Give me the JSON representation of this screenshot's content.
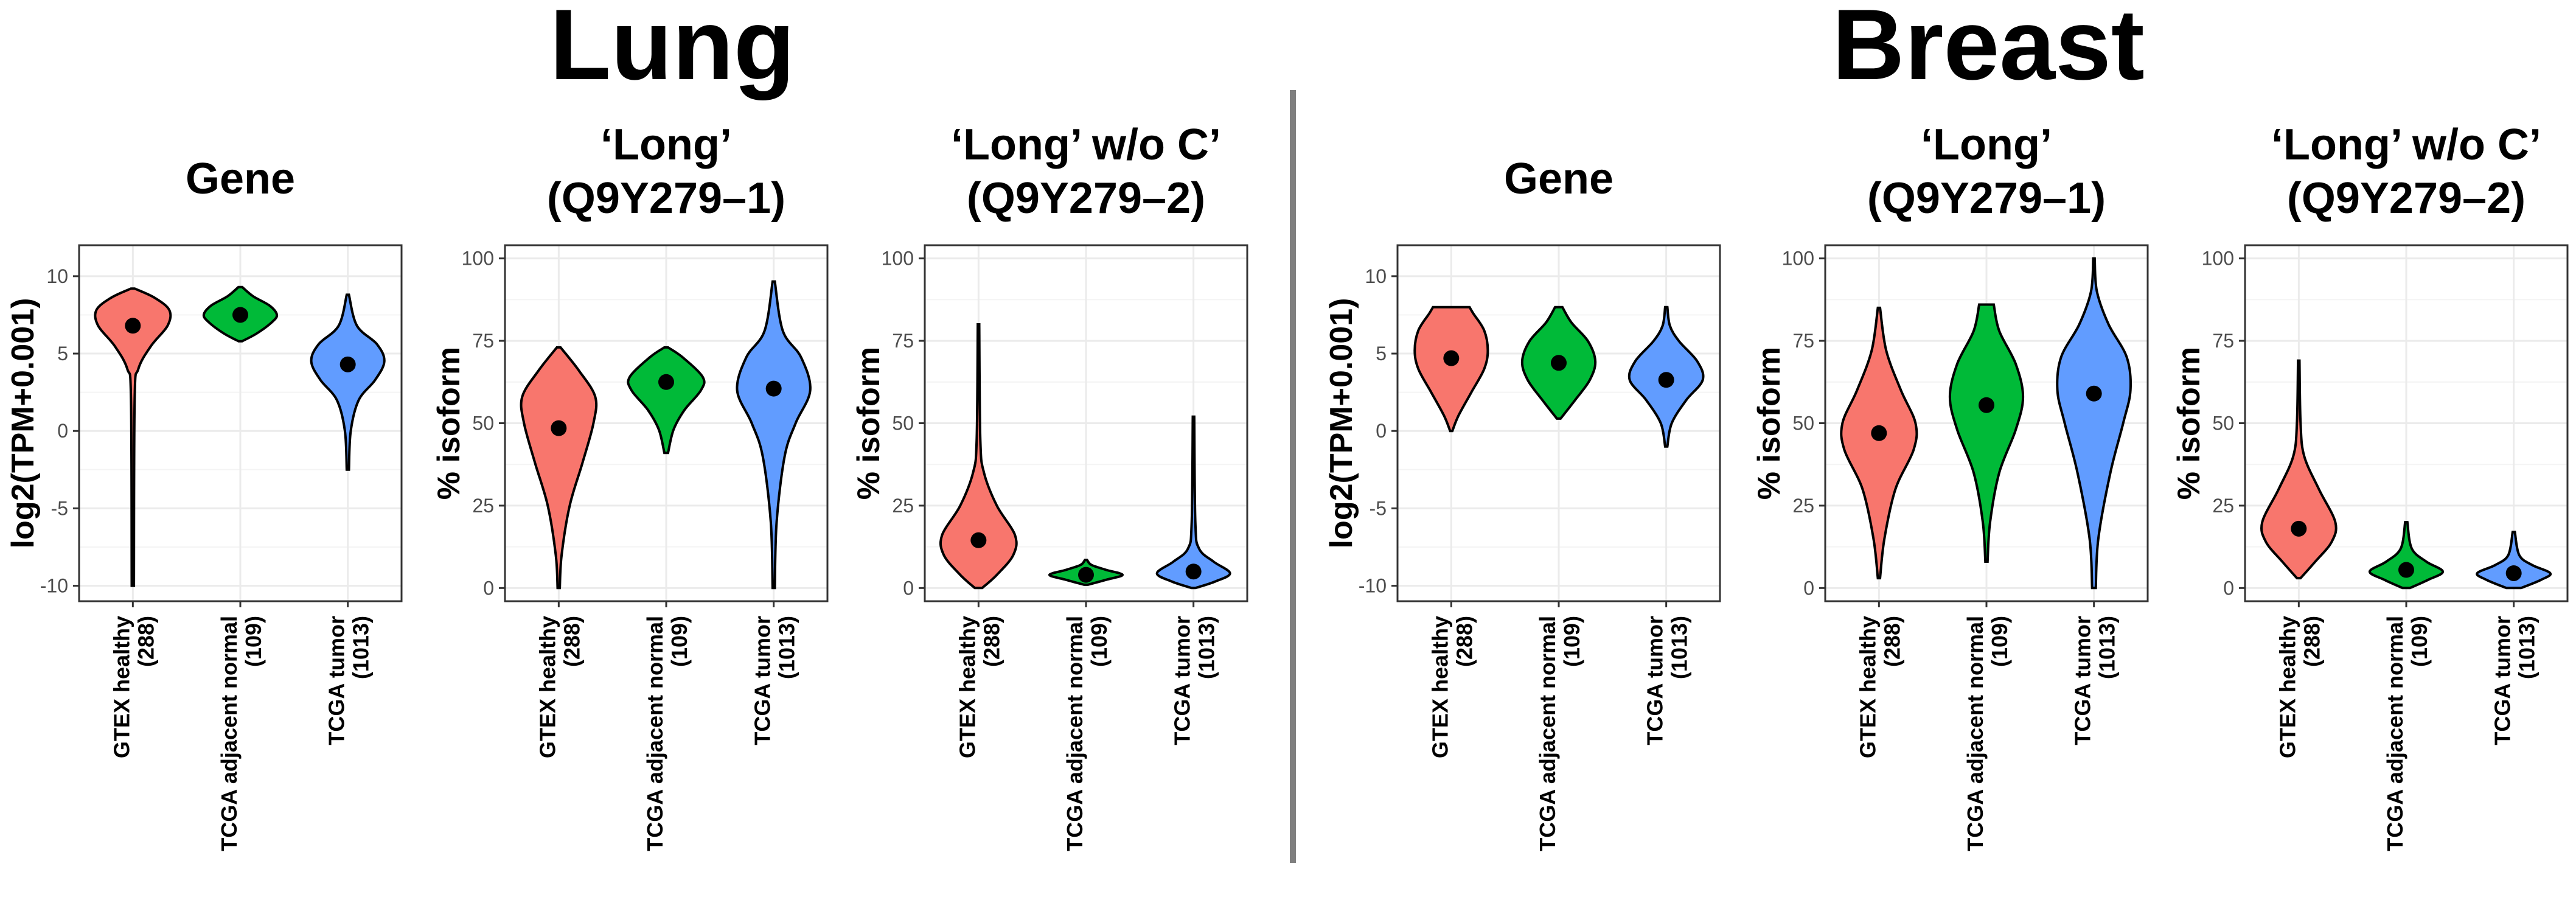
{
  "sections": [
    {
      "title": "Lung",
      "chart_indices": [
        0,
        1,
        2
      ]
    },
    {
      "title": "Breast",
      "chart_indices": [
        3,
        4,
        5
      ]
    }
  ],
  "chart_data": [
    {
      "type": "violin",
      "title": [
        "Gene"
      ],
      "ylabel": "log2(TPM+0.001)",
      "ylim": [
        -11,
        12
      ],
      "yticks": [
        -10,
        -5,
        0,
        5,
        10
      ],
      "categories": [
        [
          "GTEX healthy",
          "(288)"
        ],
        [
          "TCGA adjacent normal",
          "(109)"
        ],
        [
          "TCGA tumor",
          "(1013)"
        ]
      ],
      "colors": [
        "#F8766D",
        "#00BA38",
        "#619CFF"
      ],
      "series": [
        {
          "min": -10,
          "max": 9.2,
          "mean": 6.8,
          "profile": [
            [
              -10,
              0.03
            ],
            [
              2,
              0.05
            ],
            [
              4,
              0.15
            ],
            [
              5.5,
              0.5
            ],
            [
              6.8,
              0.95
            ],
            [
              7.8,
              1.0
            ],
            [
              8.6,
              0.6
            ],
            [
              9.2,
              0.05
            ]
          ]
        },
        {
          "min": 5.8,
          "max": 9.3,
          "mean": 7.5,
          "profile": [
            [
              5.8,
              0.05
            ],
            [
              6.3,
              0.45
            ],
            [
              7,
              0.85
            ],
            [
              7.5,
              1.0
            ],
            [
              8.1,
              0.8
            ],
            [
              8.7,
              0.35
            ],
            [
              9.3,
              0.05
            ]
          ]
        },
        {
          "min": -2.5,
          "max": 8.8,
          "mean": 4.3,
          "profile": [
            [
              -2.5,
              0.03
            ],
            [
              0,
              0.08
            ],
            [
              2,
              0.3
            ],
            [
              3.3,
              0.75
            ],
            [
              4.5,
              1.0
            ],
            [
              5.6,
              0.8
            ],
            [
              6.8,
              0.25
            ],
            [
              8.8,
              0.03
            ]
          ]
        }
      ]
    },
    {
      "type": "violin",
      "title": [
        "‘Long’",
        "(Q9Y279–1)"
      ],
      "ylabel": "% isoform",
      "ylim": [
        -4,
        104
      ],
      "yticks": [
        0,
        25,
        50,
        75,
        100
      ],
      "categories": [
        [
          "GTEX healthy",
          "(288)"
        ],
        [
          "TCGA adjacent normal",
          "(109)"
        ],
        [
          "TCGA tumor",
          "(1013)"
        ]
      ],
      "colors": [
        "#F8766D",
        "#00BA38",
        "#619CFF"
      ],
      "series": [
        {
          "min": 0,
          "max": 73,
          "mean": 48.5,
          "profile": [
            [
              0,
              0.03
            ],
            [
              10,
              0.08
            ],
            [
              25,
              0.3
            ],
            [
              38,
              0.65
            ],
            [
              50,
              0.95
            ],
            [
              58,
              1.0
            ],
            [
              66,
              0.55
            ],
            [
              73,
              0.05
            ]
          ]
        },
        {
          "min": 41,
          "max": 73,
          "mean": 62.5,
          "profile": [
            [
              41,
              0.05
            ],
            [
              48,
              0.2
            ],
            [
              54,
              0.5
            ],
            [
              60,
              0.95
            ],
            [
              64,
              1.0
            ],
            [
              70,
              0.45
            ],
            [
              73,
              0.05
            ]
          ]
        },
        {
          "min": 0,
          "max": 93,
          "mean": 60.5,
          "profile": [
            [
              0,
              0.03
            ],
            [
              20,
              0.08
            ],
            [
              40,
              0.3
            ],
            [
              50,
              0.6
            ],
            [
              60,
              1.0
            ],
            [
              70,
              0.75
            ],
            [
              78,
              0.25
            ],
            [
              93,
              0.03
            ]
          ]
        }
      ]
    },
    {
      "type": "violin",
      "title": [
        "‘Long’ w/o C’",
        "(Q9Y279–2)"
      ],
      "ylabel": "% isoform",
      "ylim": [
        -4,
        104
      ],
      "yticks": [
        0,
        25,
        50,
        75,
        100
      ],
      "categories": [
        [
          "GTEX healthy",
          "(288)"
        ],
        [
          "TCGA adjacent normal",
          "(109)"
        ],
        [
          "TCGA tumor",
          "(1013)"
        ]
      ],
      "colors": [
        "#F8766D",
        "#00BA38",
        "#619CFF"
      ],
      "series": [
        {
          "min": 0,
          "max": 80,
          "mean": 14.5,
          "profile": [
            [
              0,
              0.1
            ],
            [
              4,
              0.5
            ],
            [
              10,
              0.95
            ],
            [
              16,
              1.0
            ],
            [
              25,
              0.5
            ],
            [
              35,
              0.15
            ],
            [
              45,
              0.05
            ],
            [
              80,
              0.02
            ]
          ]
        },
        {
          "min": 1,
          "max": 8.5,
          "mean": 4,
          "profile": [
            [
              1,
              0.05
            ],
            [
              2.5,
              0.55
            ],
            [
              4,
              1.0
            ],
            [
              5.5,
              0.55
            ],
            [
              7,
              0.15
            ],
            [
              8.5,
              0.03
            ]
          ]
        },
        {
          "min": 0,
          "max": 52,
          "mean": 5,
          "profile": [
            [
              0,
              0.05
            ],
            [
              2,
              0.6
            ],
            [
              4.5,
              1.0
            ],
            [
              8,
              0.55
            ],
            [
              12,
              0.15
            ],
            [
              20,
              0.05
            ],
            [
              52,
              0.02
            ]
          ]
        }
      ]
    },
    {
      "type": "violin",
      "title": [
        "Gene"
      ],
      "ylabel": "log2(TPM+0.001)",
      "ylim": [
        -11,
        12
      ],
      "yticks": [
        -10,
        -5,
        0,
        5,
        10
      ],
      "categories": [
        [
          "GTEX healthy",
          "(288)"
        ],
        [
          "TCGA adjacent normal",
          "(109)"
        ],
        [
          "TCGA tumor",
          "(1013)"
        ]
      ],
      "colors": [
        "#F8766D",
        "#00BA38",
        "#619CFF"
      ],
      "series": [
        {
          "min": 0,
          "max": 8,
          "mean": 4.7,
          "profile": [
            [
              0,
              0.03
            ],
            [
              1,
              0.2
            ],
            [
              2.5,
              0.55
            ],
            [
              4,
              0.9
            ],
            [
              5.2,
              1.0
            ],
            [
              6.5,
              0.9
            ],
            [
              7.6,
              0.6
            ],
            [
              8,
              0.5
            ]
          ]
        },
        {
          "min": 0.8,
          "max": 8,
          "mean": 4.4,
          "profile": [
            [
              0.8,
              0.05
            ],
            [
              2,
              0.45
            ],
            [
              3.3,
              0.85
            ],
            [
              4.5,
              1.0
            ],
            [
              5.8,
              0.8
            ],
            [
              7,
              0.35
            ],
            [
              8,
              0.1
            ]
          ]
        },
        {
          "min": -1,
          "max": 8,
          "mean": 3.3,
          "profile": [
            [
              -1,
              0.03
            ],
            [
              0.5,
              0.15
            ],
            [
              2,
              0.55
            ],
            [
              3.3,
              1.0
            ],
            [
              4.5,
              0.85
            ],
            [
              5.8,
              0.35
            ],
            [
              6.8,
              0.1
            ],
            [
              8,
              0.03
            ]
          ]
        }
      ]
    },
    {
      "type": "violin",
      "title": [
        "‘Long’",
        "(Q9Y279–1)"
      ],
      "ylabel": "% isoform",
      "ylim": [
        -4,
        104
      ],
      "yticks": [
        0,
        25,
        50,
        75,
        100
      ],
      "categories": [
        [
          "GTEX healthy",
          "(288)"
        ],
        [
          "TCGA adjacent normal",
          "(109)"
        ],
        [
          "TCGA tumor",
          "(1013)"
        ]
      ],
      "colors": [
        "#F8766D",
        "#00BA38",
        "#619CFF"
      ],
      "series": [
        {
          "min": 3,
          "max": 85,
          "mean": 47,
          "profile": [
            [
              3,
              0.03
            ],
            [
              15,
              0.15
            ],
            [
              30,
              0.45
            ],
            [
              42,
              0.95
            ],
            [
              50,
              1.0
            ],
            [
              60,
              0.6
            ],
            [
              72,
              0.2
            ],
            [
              85,
              0.03
            ]
          ]
        },
        {
          "min": 8,
          "max": 87,
          "mean": 55.5,
          "profile": [
            [
              8,
              0.03
            ],
            [
              20,
              0.1
            ],
            [
              35,
              0.35
            ],
            [
              48,
              0.8
            ],
            [
              58,
              1.0
            ],
            [
              68,
              0.8
            ],
            [
              78,
              0.35
            ],
            [
              86,
              0.2
            ]
          ]
        },
        {
          "min": 0,
          "max": 100,
          "mean": 59,
          "profile": [
            [
              0,
              0.05
            ],
            [
              15,
              0.12
            ],
            [
              35,
              0.45
            ],
            [
              50,
              0.8
            ],
            [
              60,
              1.0
            ],
            [
              70,
              0.9
            ],
            [
              80,
              0.4
            ],
            [
              90,
              0.08
            ],
            [
              100,
              0.02
            ]
          ]
        }
      ]
    },
    {
      "type": "violin",
      "title": [
        "‘Long’ w/o C’",
        "(Q9Y279–2)"
      ],
      "ylabel": "% isoform",
      "ylim": [
        -4,
        104
      ],
      "yticks": [
        0,
        25,
        50,
        75,
        100
      ],
      "categories": [
        [
          "GTEX healthy",
          "(288)"
        ],
        [
          "TCGA adjacent normal",
          "(109)"
        ],
        [
          "TCGA tumor",
          "(1013)"
        ]
      ],
      "colors": [
        "#F8766D",
        "#00BA38",
        "#619CFF"
      ],
      "series": [
        {
          "min": 3,
          "max": 69,
          "mean": 18,
          "profile": [
            [
              3,
              0.05
            ],
            [
              8,
              0.45
            ],
            [
              14,
              0.9
            ],
            [
              20,
              1.0
            ],
            [
              30,
              0.55
            ],
            [
              40,
              0.15
            ],
            [
              50,
              0.05
            ],
            [
              69,
              0.02
            ]
          ]
        },
        {
          "min": 0,
          "max": 20,
          "mean": 5.5,
          "profile": [
            [
              0,
              0.1
            ],
            [
              2.5,
              0.6
            ],
            [
              5,
              1.0
            ],
            [
              8,
              0.55
            ],
            [
              12,
              0.15
            ],
            [
              20,
              0.03
            ]
          ]
        },
        {
          "min": 0,
          "max": 17,
          "mean": 4.5,
          "profile": [
            [
              0,
              0.2
            ],
            [
              2.5,
              0.75
            ],
            [
              4.5,
              1.0
            ],
            [
              7,
              0.5
            ],
            [
              10,
              0.15
            ],
            [
              17,
              0.03
            ]
          ]
        }
      ]
    }
  ]
}
